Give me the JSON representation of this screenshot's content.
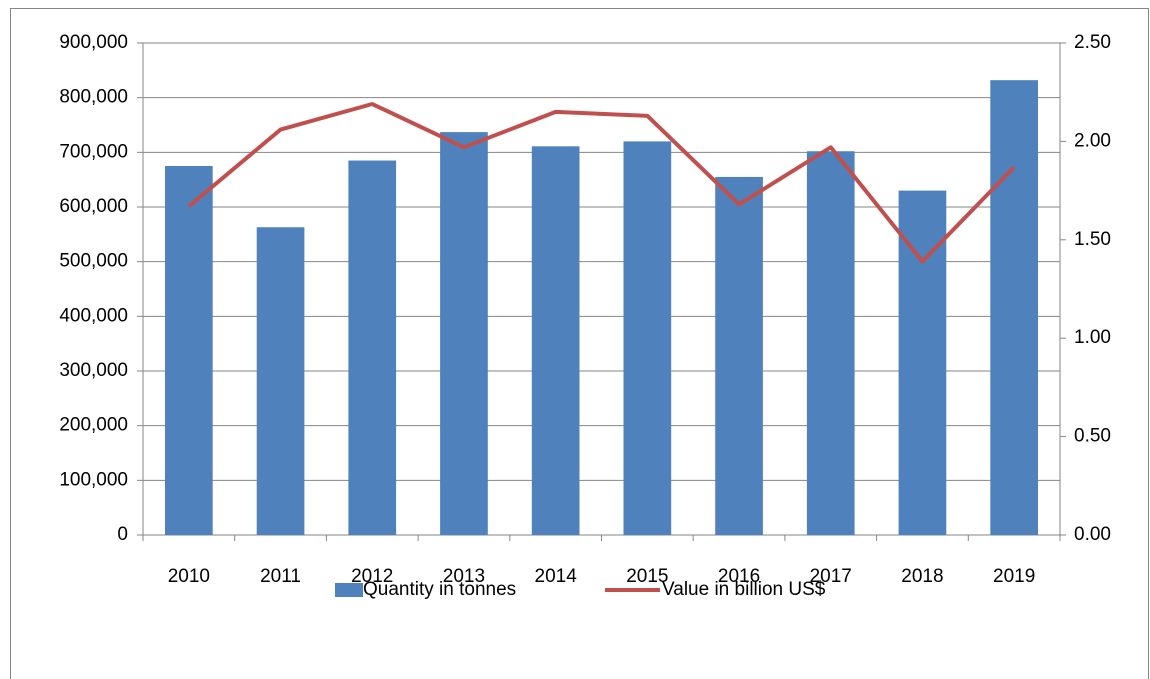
{
  "chart_data": {
    "type": "bar",
    "categories": [
      "2010",
      "2011",
      "2012",
      "2013",
      "2014",
      "2015",
      "2016",
      "2017",
      "2018",
      "2019"
    ],
    "series": [
      {
        "name": "Quantity in tonnes",
        "type": "bar",
        "color": "#4f81bd",
        "values": [
          675000,
          563000,
          685000,
          737000,
          711000,
          720000,
          655000,
          702000,
          630000,
          832000
        ]
      },
      {
        "name": "Value in billion US$",
        "type": "line",
        "axis": "y2",
        "color": "#c0504d",
        "values": [
          1.67,
          2.06,
          2.19,
          1.97,
          2.15,
          2.13,
          1.68,
          1.97,
          1.39,
          1.87
        ]
      }
    ],
    "ylim": [
      0,
      900000
    ],
    "yticks": [
      0,
      {
        "value": 100000,
        "label": "100,000"
      },
      {
        "value": 200000,
        "label": "200,000"
      },
      {
        "value": 300000,
        "label": "300,000"
      },
      {
        "value": 400000,
        "label": "400,000"
      },
      {
        "value": 500000,
        "label": "500,000"
      },
      {
        "value": 600000,
        "label": "600,000"
      },
      {
        "value": 700000,
        "label": "700,000"
      },
      {
        "value": 800000,
        "label": "800,000"
      },
      {
        "value": 900000,
        "label": "900,000"
      }
    ],
    "y2lim": [
      0,
      2.5
    ],
    "y2ticks": [
      {
        "value": 0,
        "label": "0.00"
      },
      {
        "value": 0.5,
        "label": "0.50"
      },
      {
        "value": 1,
        "label": "1.00"
      },
      {
        "value": 1.5,
        "label": "1.50"
      },
      {
        "value": 2,
        "label": "2.00"
      },
      {
        "value": 2.5,
        "label": "2.50"
      }
    ],
    "grid": true,
    "legend": "bottom"
  }
}
